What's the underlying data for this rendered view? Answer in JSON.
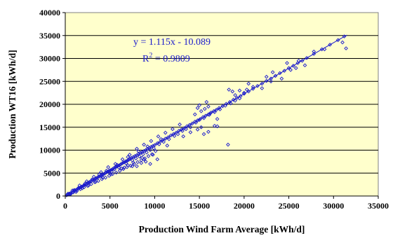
{
  "chart_data": {
    "type": "scatter",
    "title": "",
    "xlabel": "Production Wind Farm Average [kWh/d]",
    "ylabel": "Production WT16 [kWh/d]",
    "xlim": [
      0,
      35000
    ],
    "ylim": [
      0,
      40000
    ],
    "x_ticks": [
      "0",
      "5000",
      "10000",
      "15000",
      "20000",
      "25000",
      "30000",
      "35000"
    ],
    "y_ticks": [
      "0",
      "5000",
      "10000",
      "15000",
      "20000",
      "25000",
      "30000",
      "35000",
      "40000"
    ],
    "grid": "horizontal",
    "plot_background": "#ffffcc",
    "point_color": "#1a1acc",
    "trendline": {
      "type": "linear",
      "slope": 1.115,
      "intercept": -10.089,
      "x_range": [
        0,
        31500
      ],
      "equation_label": "y = 1.115x - 10.089",
      "r2_prefix": "R",
      "r2_exp": "2",
      "r2_value": " = 0.9809"
    },
    "points": [
      [
        150,
        160
      ],
      [
        300,
        310
      ],
      [
        450,
        520
      ],
      [
        600,
        640
      ],
      [
        800,
        850
      ],
      [
        950,
        1100
      ],
      [
        1100,
        1250
      ],
      [
        1250,
        1350
      ],
      [
        1400,
        1600
      ],
      [
        1550,
        1700
      ],
      [
        1700,
        1900
      ],
      [
        1850,
        2050
      ],
      [
        2000,
        2200
      ],
      [
        2150,
        2400
      ],
      [
        2300,
        2500
      ],
      [
        2450,
        2800
      ],
      [
        2600,
        2900
      ],
      [
        2750,
        3100
      ],
      [
        2900,
        3200
      ],
      [
        3050,
        3500
      ],
      [
        3200,
        3550
      ],
      [
        3350,
        3800
      ],
      [
        3500,
        3900
      ],
      [
        3650,
        4100
      ],
      [
        3800,
        4250
      ],
      [
        3950,
        4400
      ],
      [
        4100,
        4600
      ],
      [
        4250,
        4700
      ],
      [
        4400,
        4900
      ],
      [
        4550,
        5100
      ],
      [
        4700,
        5300
      ],
      [
        4850,
        5400
      ],
      [
        5000,
        5600
      ],
      [
        5150,
        5700
      ],
      [
        5300,
        5900
      ],
      [
        5450,
        6100
      ],
      [
        5600,
        6300
      ],
      [
        5750,
        6400
      ],
      [
        5900,
        6600
      ],
      [
        6050,
        6700
      ],
      [
        6200,
        6900
      ],
      [
        6350,
        7100
      ],
      [
        6500,
        7300
      ],
      [
        6650,
        7400
      ],
      [
        6800,
        7600
      ],
      [
        6950,
        7700
      ],
      [
        7100,
        7900
      ],
      [
        7250,
        8100
      ],
      [
        7400,
        8300
      ],
      [
        7600,
        8500
      ],
      [
        7800,
        8700
      ],
      [
        8000,
        8900
      ],
      [
        8200,
        9200
      ],
      [
        8400,
        9400
      ],
      [
        8600,
        9600
      ],
      [
        8800,
        9800
      ],
      [
        9000,
        10000
      ],
      [
        9200,
        10300
      ],
      [
        9400,
        10500
      ],
      [
        9600,
        10700
      ],
      [
        9800,
        10900
      ],
      [
        10000,
        11100
      ],
      [
        10300,
        11500
      ],
      [
        10600,
        11800
      ],
      [
        10900,
        12200
      ],
      [
        11200,
        12500
      ],
      [
        11500,
        12800
      ],
      [
        11800,
        13200
      ],
      [
        12100,
        13500
      ],
      [
        12400,
        13800
      ],
      [
        12700,
        14200
      ],
      [
        13000,
        14500
      ],
      [
        13300,
        14800
      ],
      [
        13600,
        15200
      ],
      [
        13900,
        15500
      ],
      [
        14200,
        15800
      ],
      [
        14500,
        16200
      ],
      [
        14800,
        16500
      ],
      [
        15100,
        16800
      ],
      [
        15400,
        17200
      ],
      [
        15700,
        17500
      ],
      [
        16000,
        17800
      ],
      [
        16300,
        18200
      ],
      [
        16600,
        18500
      ],
      [
        16900,
        18800
      ],
      [
        17200,
        19200
      ],
      [
        17600,
        19600
      ],
      [
        18000,
        20100
      ],
      [
        18400,
        20500
      ],
      [
        18800,
        21000
      ],
      [
        19200,
        21400
      ],
      [
        19600,
        21800
      ],
      [
        20000,
        22300
      ],
      [
        20500,
        22800
      ],
      [
        21000,
        23400
      ],
      [
        21500,
        24000
      ],
      [
        22000,
        24500
      ],
      [
        22500,
        25100
      ],
      [
        23000,
        25600
      ],
      [
        23500,
        26200
      ],
      [
        24000,
        26800
      ],
      [
        24500,
        27300
      ],
      [
        25000,
        27900
      ],
      [
        25500,
        28400
      ],
      [
        26000,
        29000
      ],
      [
        26500,
        29500
      ],
      [
        27000,
        30100
      ],
      [
        27800,
        31000
      ],
      [
        28700,
        32000
      ],
      [
        29600,
        33000
      ],
      [
        30500,
        34000
      ],
      [
        31200,
        34800
      ],
      [
        500,
        400
      ],
      [
        900,
        800
      ],
      [
        1300,
        1100
      ],
      [
        1700,
        1500
      ],
      [
        2100,
        1900
      ],
      [
        2500,
        2200
      ],
      [
        2900,
        2600
      ],
      [
        3300,
        3000
      ],
      [
        3700,
        3300
      ],
      [
        4100,
        3700
      ],
      [
        4500,
        4000
      ],
      [
        4900,
        4400
      ],
      [
        5300,
        4800
      ],
      [
        5700,
        5100
      ],
      [
        6100,
        5500
      ],
      [
        6500,
        5900
      ],
      [
        6900,
        6300
      ],
      [
        7300,
        6600
      ],
      [
        7700,
        7000
      ],
      [
        8100,
        7400
      ],
      [
        8500,
        7800
      ],
      [
        8900,
        8200
      ],
      [
        9300,
        8700
      ],
      [
        9700,
        9100
      ],
      [
        800,
        1200
      ],
      [
        1600,
        2300
      ],
      [
        2400,
        3200
      ],
      [
        3200,
        4200
      ],
      [
        4000,
        5200
      ],
      [
        4800,
        6300
      ],
      [
        5600,
        7000
      ],
      [
        6400,
        8000
      ],
      [
        7200,
        9000
      ],
      [
        8000,
        10300
      ],
      [
        8800,
        11200
      ],
      [
        9600,
        12000
      ],
      [
        10400,
        13000
      ],
      [
        11200,
        13800
      ],
      [
        12000,
        14600
      ],
      [
        12800,
        15600
      ],
      [
        5000,
        4900
      ],
      [
        5200,
        5300
      ],
      [
        5500,
        5800
      ],
      [
        6000,
        6200
      ],
      [
        6300,
        6000
      ],
      [
        6800,
        7100
      ],
      [
        7000,
        6700
      ],
      [
        7500,
        7800
      ],
      [
        7900,
        8200
      ],
      [
        8300,
        8600
      ],
      [
        8700,
        9100
      ],
      [
        9100,
        9500
      ],
      [
        9500,
        10000
      ],
      [
        9900,
        10400
      ],
      [
        10500,
        11300
      ],
      [
        11000,
        11800
      ],
      [
        11600,
        12400
      ],
      [
        12200,
        13100
      ],
      [
        12600,
        13500
      ],
      [
        13100,
        14200
      ],
      [
        13500,
        14600
      ],
      [
        14000,
        15000
      ],
      [
        14600,
        16000
      ],
      [
        15000,
        16600
      ],
      [
        15500,
        17000
      ],
      [
        16100,
        17700
      ],
      [
        16700,
        18300
      ],
      [
        17300,
        18900
      ],
      [
        17900,
        19700
      ],
      [
        18500,
        20200
      ],
      [
        19000,
        20800
      ],
      [
        19500,
        21300
      ],
      [
        9000,
        7500
      ],
      [
        9500,
        7000
      ],
      [
        8500,
        7200
      ],
      [
        10300,
        8000
      ],
      [
        8000,
        6500
      ],
      [
        9800,
        9000
      ],
      [
        7500,
        6500
      ],
      [
        8800,
        8000
      ],
      [
        13200,
        13000
      ],
      [
        14000,
        13900
      ],
      [
        14800,
        14500
      ],
      [
        15200,
        15000
      ],
      [
        15500,
        13500
      ],
      [
        16000,
        14000
      ],
      [
        16700,
        15300
      ],
      [
        17000,
        16800
      ],
      [
        15200,
        18500
      ],
      [
        15600,
        19000
      ],
      [
        16000,
        19500
      ],
      [
        14800,
        19200
      ],
      [
        15800,
        20500
      ],
      [
        16200,
        18000
      ],
      [
        14500,
        17800
      ],
      [
        15000,
        19800
      ],
      [
        18300,
        23200
      ],
      [
        18700,
        22800
      ],
      [
        19500,
        23000
      ],
      [
        20000,
        22500
      ],
      [
        20300,
        23200
      ],
      [
        19000,
        22000
      ],
      [
        21000,
        23800
      ],
      [
        20500,
        24500
      ],
      [
        22000,
        23500
      ],
      [
        23000,
        25000
      ],
      [
        24200,
        25600
      ],
      [
        24800,
        29000
      ],
      [
        25200,
        27500
      ],
      [
        26100,
        29500
      ],
      [
        27800,
        31500
      ],
      [
        29000,
        32000
      ],
      [
        31000,
        33500
      ],
      [
        31400,
        32200
      ],
      [
        18200,
        11200
      ],
      [
        17000,
        15200
      ],
      [
        22500,
        26000
      ],
      [
        23200,
        27000
      ],
      [
        25800,
        27900
      ],
      [
        26800,
        28500
      ],
      [
        300,
        500
      ],
      [
        600,
        400
      ],
      [
        1000,
        1300
      ],
      [
        1200,
        900
      ],
      [
        1500,
        1800
      ],
      [
        1900,
        1700
      ],
      [
        2200,
        2700
      ],
      [
        2600,
        2300
      ],
      [
        3000,
        3600
      ],
      [
        3400,
        3100
      ],
      [
        3800,
        4700
      ],
      [
        4200,
        4000
      ],
      [
        4600,
        5500
      ],
      [
        5100,
        4700
      ],
      [
        5800,
        6800
      ],
      [
        6600,
        6200
      ],
      [
        7000,
        8500
      ],
      [
        7600,
        7300
      ],
      [
        8200,
        9700
      ],
      [
        8600,
        8300
      ],
      [
        9200,
        10800
      ],
      [
        10100,
        9800
      ],
      [
        10700,
        12400
      ],
      [
        11400,
        11000
      ]
    ]
  }
}
